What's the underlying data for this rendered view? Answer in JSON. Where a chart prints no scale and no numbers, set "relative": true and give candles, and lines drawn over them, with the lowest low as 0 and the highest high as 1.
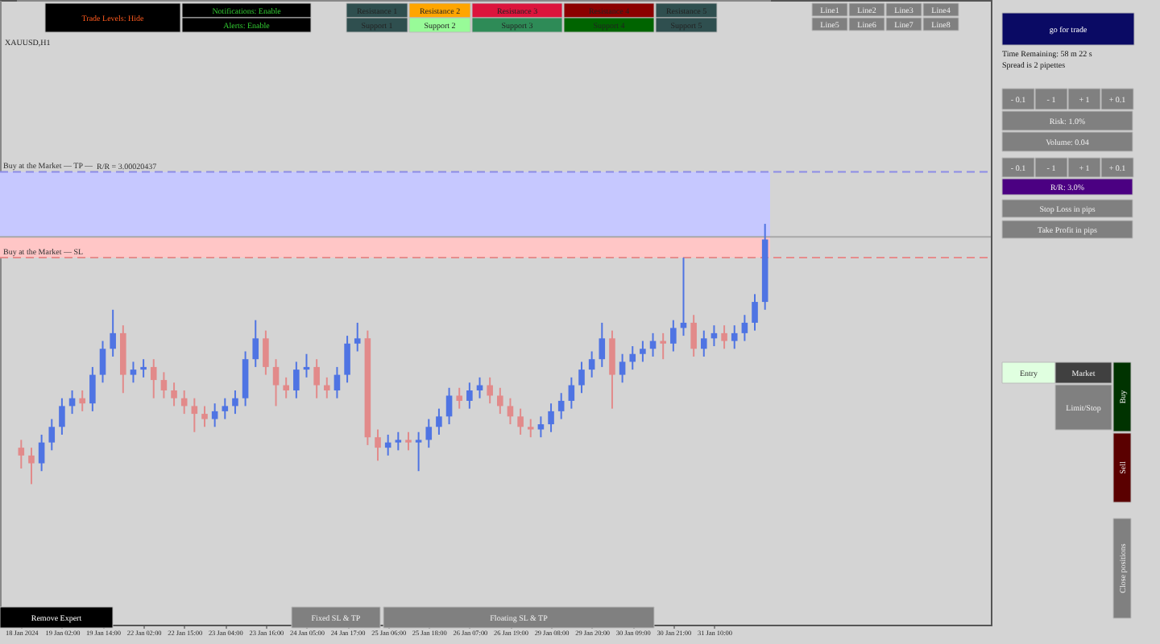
{
  "chart_data": {
    "type": "candlestick",
    "relative": true,
    "categories": [
      "18 Jan 2024",
      null,
      null,
      null,
      "19 Jan 02:00",
      null,
      null,
      null,
      "19 Jan 14:00",
      null,
      null,
      null,
      "22 Jan 02:00",
      null,
      null,
      null,
      "22 Jan 15:00",
      null,
      null,
      null,
      "23 Jan 04:00",
      null,
      null,
      null,
      "23 Jan 16:00",
      null,
      null,
      null,
      "24 Jan 05:00",
      null,
      null,
      null,
      "24 Jan 17:00",
      null,
      null,
      null,
      "25 Jan 06:00",
      null,
      null,
      null,
      "25 Jan 18:00",
      null,
      null,
      null,
      "26 Jan 07:00",
      null,
      null,
      null,
      "26 Jan 19:00",
      null,
      null,
      null,
      "29 Jan 08:00",
      null,
      null,
      null,
      "29 Jan 20:00",
      null,
      null,
      null,
      "30 Jan 09:00",
      null,
      null,
      null,
      "30 Jan 21:00",
      null,
      null,
      null,
      "31 Jan 10:00",
      null,
      null,
      null,
      null,
      null
    ],
    "ohlc": [
      [
        0.14,
        0.17,
        0.06,
        0.11
      ],
      [
        0.11,
        0.14,
        0.0,
        0.08
      ],
      [
        0.08,
        0.19,
        0.05,
        0.16
      ],
      [
        0.16,
        0.25,
        0.13,
        0.22
      ],
      [
        0.22,
        0.33,
        0.19,
        0.3
      ],
      [
        0.3,
        0.36,
        0.27,
        0.33
      ],
      [
        0.33,
        0.36,
        0.28,
        0.31
      ],
      [
        0.31,
        0.45,
        0.28,
        0.42
      ],
      [
        0.42,
        0.55,
        0.39,
        0.52
      ],
      [
        0.52,
        0.67,
        0.49,
        0.58
      ],
      [
        0.58,
        0.61,
        0.35,
        0.42
      ],
      [
        0.42,
        0.47,
        0.39,
        0.44
      ],
      [
        0.44,
        0.48,
        0.41,
        0.45
      ],
      [
        0.45,
        0.48,
        0.33,
        0.4
      ],
      [
        0.4,
        0.43,
        0.33,
        0.36
      ],
      [
        0.36,
        0.39,
        0.3,
        0.33
      ],
      [
        0.33,
        0.36,
        0.27,
        0.3
      ],
      [
        0.3,
        0.33,
        0.2,
        0.27
      ],
      [
        0.27,
        0.3,
        0.22,
        0.25
      ],
      [
        0.25,
        0.31,
        0.22,
        0.28
      ],
      [
        0.28,
        0.33,
        0.25,
        0.3
      ],
      [
        0.3,
        0.36,
        0.27,
        0.33
      ],
      [
        0.33,
        0.51,
        0.3,
        0.48
      ],
      [
        0.48,
        0.63,
        0.45,
        0.56
      ],
      [
        0.56,
        0.59,
        0.42,
        0.45
      ],
      [
        0.45,
        0.48,
        0.3,
        0.38
      ],
      [
        0.38,
        0.41,
        0.33,
        0.36
      ],
      [
        0.36,
        0.47,
        0.33,
        0.44
      ],
      [
        0.44,
        0.5,
        0.41,
        0.45
      ],
      [
        0.45,
        0.48,
        0.33,
        0.38
      ],
      [
        0.38,
        0.41,
        0.33,
        0.36
      ],
      [
        0.36,
        0.45,
        0.33,
        0.42
      ],
      [
        0.42,
        0.57,
        0.39,
        0.54
      ],
      [
        0.54,
        0.62,
        0.51,
        0.56
      ],
      [
        0.56,
        0.59,
        0.15,
        0.18
      ],
      [
        0.18,
        0.21,
        0.09,
        0.14
      ],
      [
        0.14,
        0.19,
        0.11,
        0.16
      ],
      [
        0.16,
        0.2,
        0.13,
        0.17
      ],
      [
        0.17,
        0.2,
        0.13,
        0.16
      ],
      [
        0.16,
        0.2,
        0.05,
        0.17
      ],
      [
        0.17,
        0.25,
        0.14,
        0.22
      ],
      [
        0.22,
        0.29,
        0.19,
        0.26
      ],
      [
        0.26,
        0.37,
        0.23,
        0.34
      ],
      [
        0.34,
        0.37,
        0.29,
        0.32
      ],
      [
        0.32,
        0.39,
        0.29,
        0.36
      ],
      [
        0.36,
        0.41,
        0.33,
        0.38
      ],
      [
        0.38,
        0.41,
        0.31,
        0.34
      ],
      [
        0.34,
        0.37,
        0.27,
        0.3
      ],
      [
        0.3,
        0.33,
        0.23,
        0.26
      ],
      [
        0.26,
        0.29,
        0.19,
        0.22
      ],
      [
        0.22,
        0.25,
        0.18,
        0.21
      ],
      [
        0.21,
        0.26,
        0.18,
        0.23
      ],
      [
        0.23,
        0.31,
        0.2,
        0.28
      ],
      [
        0.28,
        0.35,
        0.25,
        0.32
      ],
      [
        0.32,
        0.41,
        0.29,
        0.38
      ],
      [
        0.38,
        0.47,
        0.35,
        0.44
      ],
      [
        0.44,
        0.51,
        0.41,
        0.48
      ],
      [
        0.48,
        0.62,
        0.45,
        0.56
      ],
      [
        0.56,
        0.59,
        0.29,
        0.42
      ],
      [
        0.42,
        0.5,
        0.39,
        0.47
      ],
      [
        0.47,
        0.53,
        0.44,
        0.5
      ],
      [
        0.5,
        0.55,
        0.47,
        0.52
      ],
      [
        0.52,
        0.58,
        0.49,
        0.55
      ],
      [
        0.55,
        0.58,
        0.48,
        0.54
      ],
      [
        0.54,
        0.63,
        0.51,
        0.6
      ],
      [
        0.6,
        0.87,
        0.57,
        0.62
      ],
      [
        0.62,
        0.65,
        0.49,
        0.52
      ],
      [
        0.52,
        0.59,
        0.49,
        0.56
      ],
      [
        0.56,
        0.61,
        0.53,
        0.58
      ],
      [
        0.58,
        0.61,
        0.52,
        0.55
      ],
      [
        0.55,
        0.61,
        0.52,
        0.58
      ],
      [
        0.58,
        0.65,
        0.55,
        0.62
      ],
      [
        0.62,
        0.73,
        0.59,
        0.7
      ],
      [
        0.7,
        1.0,
        0.67,
        0.94
      ]
    ],
    "colors": [
      "#e28a8a",
      "#e28a8a",
      "#4f74e3",
      "#4f74e3",
      "#4f74e3",
      "#4f74e3",
      "#e28a8a",
      "#4f74e3",
      "#4f74e3",
      "#4f74e3",
      "#e28a8a",
      "#4f74e3",
      "#4f74e3",
      "#e28a8a",
      "#e28a8a",
      "#e28a8a",
      "#e28a8a",
      "#e28a8a",
      "#e28a8a",
      "#4f74e3",
      "#4f74e3",
      "#4f74e3",
      "#4f74e3",
      "#4f74e3",
      "#e28a8a",
      "#e28a8a",
      "#e28a8a",
      "#4f74e3",
      "#4f74e3",
      "#e28a8a",
      "#e28a8a",
      "#4f74e3",
      "#4f74e3",
      "#4f74e3",
      "#e28a8a",
      "#e28a8a",
      "#4f74e3",
      "#4f74e3",
      "#e28a8a",
      "#4f74e3",
      "#4f74e3",
      "#4f74e3",
      "#4f74e3",
      "#e28a8a",
      "#4f74e3",
      "#4f74e3",
      "#e28a8a",
      "#e28a8a",
      "#e28a8a",
      "#e28a8a",
      "#e28a8a",
      "#4f74e3",
      "#4f74e3",
      "#4f74e3",
      "#4f74e3",
      "#4f74e3",
      "#4f74e3",
      "#4f74e3",
      "#e28a8a",
      "#4f74e3",
      "#4f74e3",
      "#4f74e3",
      "#4f74e3",
      "#e28a8a",
      "#4f74e3",
      "#4f74e3",
      "#e28a8a",
      "#4f74e3",
      "#4f74e3",
      "#e28a8a",
      "#4f74e3",
      "#4f74e3",
      "#4f74e3",
      "#4f74e3"
    ],
    "bands": [
      {
        "axis": "y",
        "from": 0.95,
        "to": 1.2,
        "color": "#c6c8ff"
      },
      {
        "axis": "y",
        "from": 0.87,
        "to": 0.95,
        "color": "#ffc6c6"
      }
    ],
    "ref_lines": [
      {
        "axis": "y",
        "value": 1.2,
        "label": "Buy at the Market — TP —",
        "color": "#8c8ce6",
        "line_style": "dashed"
      },
      {
        "axis": "y",
        "value": 0.95,
        "color": "#a8a8a8",
        "line_style": "solid"
      },
      {
        "axis": "y",
        "value": 0.87,
        "label": "Buy at the Market — SL",
        "color": "#e68c8c",
        "line_style": "dashed"
      }
    ],
    "annotations": [
      "XAUUSD,H1",
      "Trade Levels: Hide",
      "Notifications: Enable",
      "Alerts: Enable",
      "Resistance 1",
      "Resistance 2",
      "Resistance 3",
      "Resistance 4",
      "Resistance 5",
      "Support 1",
      "Support 2",
      "Support 3",
      "Support 4",
      "Support 5",
      "Line1",
      "Line2",
      "Line3",
      "Line4",
      "Line5",
      "Line6",
      "Line7",
      "Line8",
      "go for trade",
      "Time Remaining: 58 m 22 s",
      "Spread is 2 pipettes",
      "- 0.1",
      "- 1",
      "+ 1",
      "+ 0.1",
      "Risk: 1.0%",
      "Volume: 0.04",
      "- 0.1",
      "- 1",
      "+ 1",
      "+ 0.1",
      "R/R: 3.0%",
      "Stop Loss in pips",
      "Take Profit in pips",
      "Entry",
      "Market",
      "Limit/Stop",
      "Buy",
      "Sell",
      "Close positions",
      "Remove Expert",
      "Fixed SL & TP",
      "Floating SL & TP",
      "R/R = 3.00020437"
    ]
  }
}
